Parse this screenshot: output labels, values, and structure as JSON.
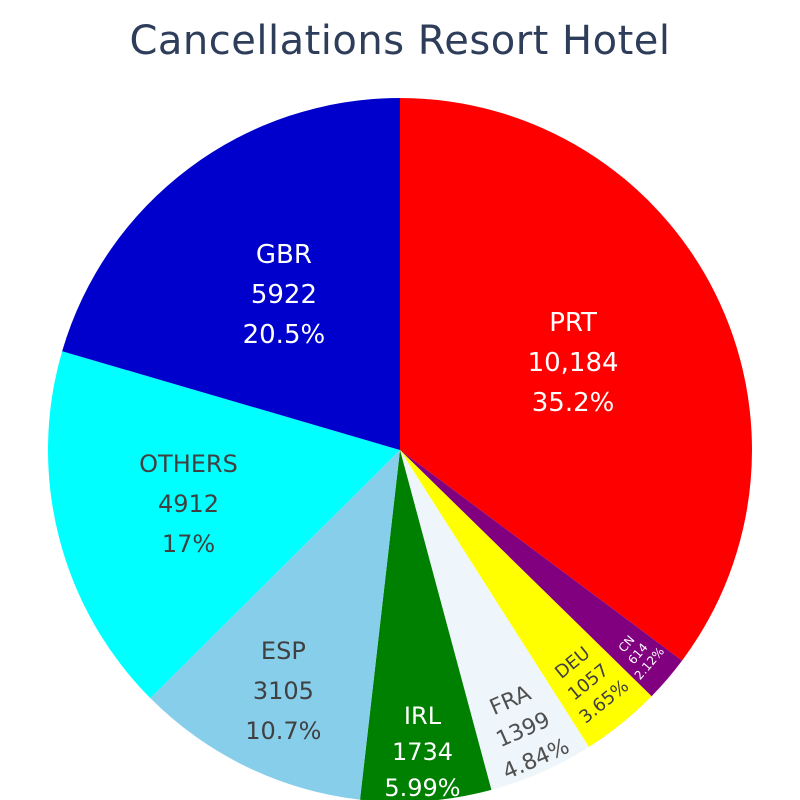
{
  "chart_data": {
    "type": "pie",
    "title": "Cancellations Resort Hotel",
    "slices": [
      {
        "label": "PRT",
        "value": 10184,
        "value_text": "10,184",
        "percent_text": "35.2%",
        "color": "#ff0000",
        "text_color": "#ffffff"
      },
      {
        "label": "CN",
        "value": 614,
        "value_text": "614",
        "percent_text": "2.12%",
        "color": "#800080",
        "text_color": "#ffffff"
      },
      {
        "label": "DEU",
        "value": 1057,
        "value_text": "1057",
        "percent_text": "3.65%",
        "color": "#ffff00",
        "text_color": "#404040"
      },
      {
        "label": "FRA",
        "value": 1399,
        "value_text": "1399",
        "percent_text": "4.84%",
        "color": "#eef6fb",
        "text_color": "#505050"
      },
      {
        "label": "IRL",
        "value": 1734,
        "value_text": "1734",
        "percent_text": "5.99%",
        "color": "#008000",
        "text_color": "#ffffff"
      },
      {
        "label": "ESP",
        "value": 3105,
        "value_text": "3105",
        "percent_text": "10.7%",
        "color": "#87ceeb",
        "text_color": "#404040"
      },
      {
        "label": "OTHERS",
        "value": 4912,
        "value_text": "4912",
        "percent_text": "17%",
        "color": "#00ffff",
        "text_color": "#404040"
      },
      {
        "label": "GBR",
        "value": 5922,
        "value_text": "5922",
        "percent_text": "20.5%",
        "color": "#0000cd",
        "text_color": "#ffffff"
      }
    ]
  }
}
